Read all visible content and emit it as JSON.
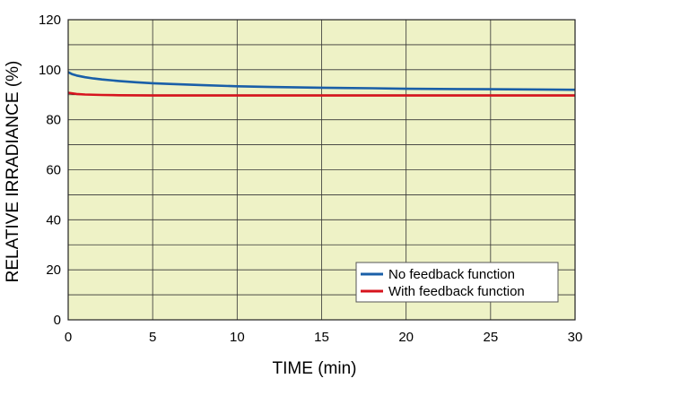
{
  "chart_data": {
    "type": "line",
    "xlabel": "TIME (min)",
    "ylabel": "RELATIVE IRRADIANCE (%)",
    "xlim": [
      0,
      30
    ],
    "ylim": [
      0,
      120
    ],
    "x_ticks": [
      0,
      5,
      10,
      15,
      20,
      25,
      30
    ],
    "y_ticks": [
      0,
      20,
      40,
      60,
      80,
      100,
      120
    ],
    "x_minor_step": 5,
    "y_minor_step": 10,
    "grid": true,
    "plot_background": "#eef2c6",
    "legend_position": "bottom-right",
    "series": [
      {
        "name": "No feedback function",
        "color": "#1a5fa8",
        "x": [
          0,
          0.25,
          0.5,
          1,
          1.5,
          2,
          3,
          4,
          5,
          6,
          8,
          10,
          12,
          15,
          18,
          20,
          22,
          25,
          28,
          30
        ],
        "y": [
          99,
          98.2,
          97.7,
          97.0,
          96.5,
          96.1,
          95.5,
          95.0,
          94.6,
          94.3,
          93.8,
          93.4,
          93.1,
          92.8,
          92.6,
          92.4,
          92.3,
          92.2,
          92.1,
          92.0
        ]
      },
      {
        "name": "With feedback function",
        "color": "#d7141e",
        "x": [
          0,
          0.5,
          1,
          2,
          3,
          5,
          10,
          15,
          20,
          25,
          30
        ],
        "y": [
          90.8,
          90.3,
          90.1,
          89.9,
          89.8,
          89.7,
          89.7,
          89.7,
          89.7,
          89.7,
          89.7
        ]
      }
    ]
  }
}
